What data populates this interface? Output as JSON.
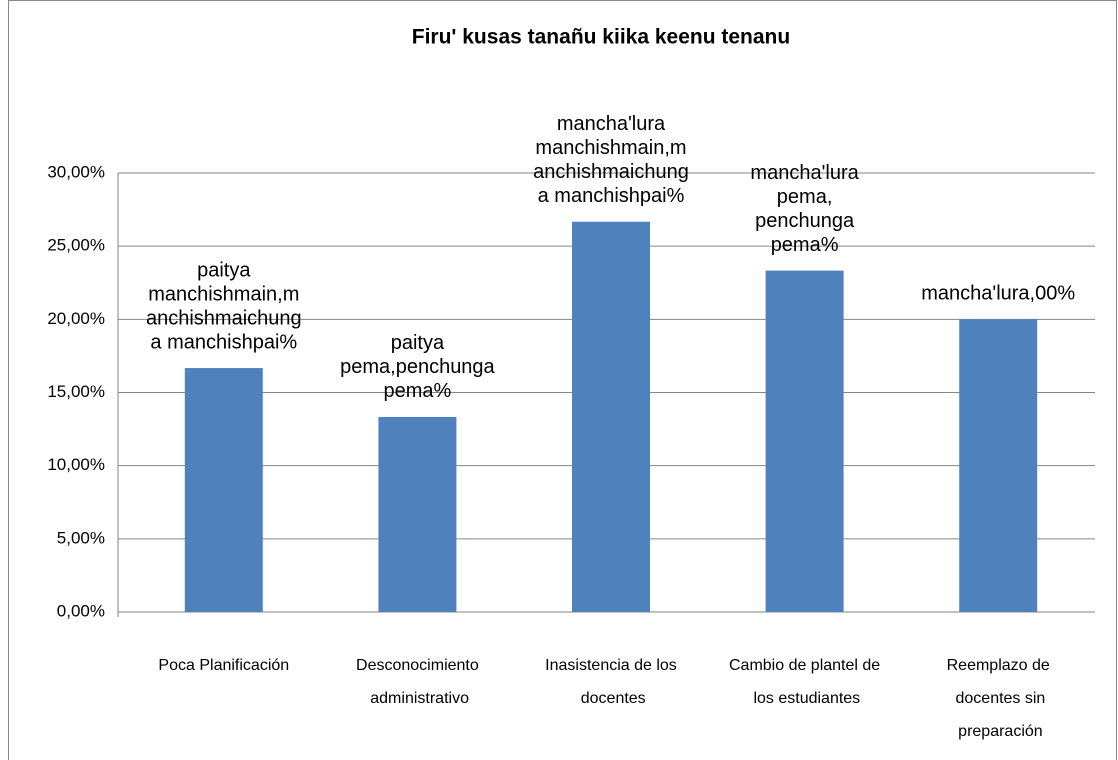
{
  "chart_data": {
    "type": "bar",
    "title": "Firu' kusas tanañu kiika keenu tenanu",
    "categories": [
      "Poca Planificación",
      "Desconocimiento administrativo",
      "Inasistencia de los docentes",
      "Cambio de plantel de los estudiantes",
      "Reemplazo de docentes sin preparación"
    ],
    "values": [
      16.67,
      13.33,
      26.67,
      23.33,
      20.0
    ],
    "value_labels": [
      [
        "paitya",
        "manchishmain,m",
        "anchishmaichung",
        "a manchishpai%"
      ],
      [
        "paitya",
        "pema,penchunga",
        "pema%"
      ],
      [
        "mancha'lura",
        "manchishmain,m",
        "anchishmaichung",
        "a manchishpai%"
      ],
      [
        "mancha'lura",
        "pema,",
        "penchunga",
        "pema%"
      ],
      [
        "mancha'lura,00%"
      ]
    ],
    "color": "#4f81bd",
    "ylim": [
      0,
      30
    ],
    "yticks": [
      {
        "value": 0,
        "label": "0,00%"
      },
      {
        "value": 5,
        "label": "5,00%"
      },
      {
        "value": 10,
        "label": "10,00%"
      },
      {
        "value": 15,
        "label": "15,00%"
      },
      {
        "value": 20,
        "label": "20,00%"
      },
      {
        "value": 25,
        "label": "25,00%"
      },
      {
        "value": 30,
        "label": "30,00%"
      }
    ],
    "grid": true
  }
}
